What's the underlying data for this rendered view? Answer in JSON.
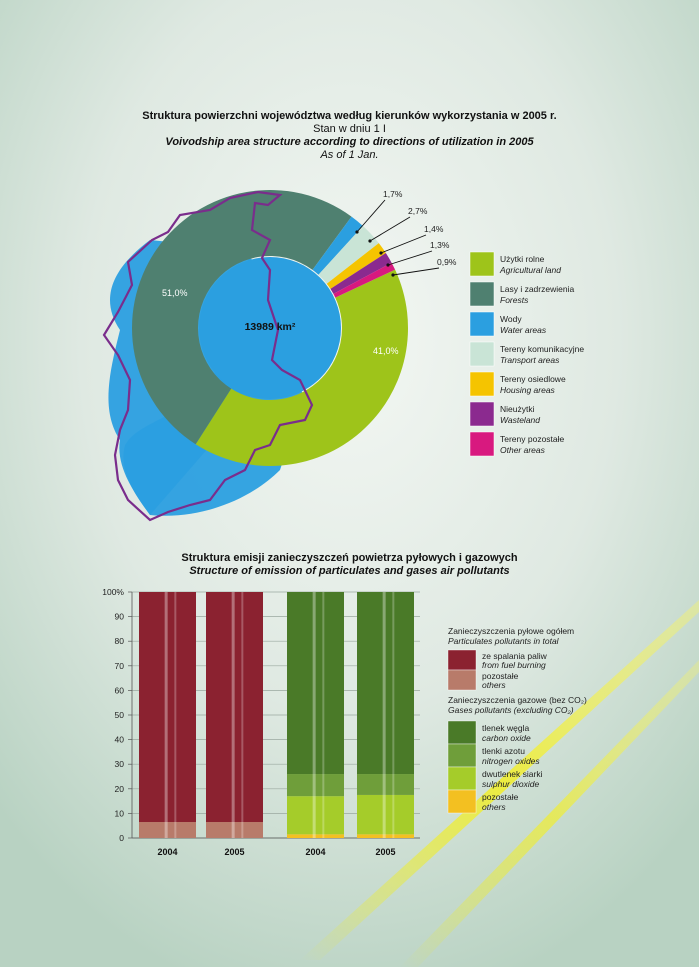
{
  "colors": {
    "agricultural": "#9ec41a",
    "forests": "#4f8070",
    "water": "#2b9fe0",
    "transport": "#c9e4d6",
    "housing": "#f5c400",
    "wasteland": "#8b2a8f",
    "other": "#d8197f",
    "border": "#7a2d8c",
    "fuel": "#8b2230",
    "dust_other": "#b87b6a",
    "co": "#4a7a28",
    "nox": "#6f9e3a",
    "so2": "#a5cc2a",
    "gas_other": "#f3c021"
  },
  "chart1": {
    "title_pl": "Struktura powierzchni województwa według kierunków wykorzystania w 2005 r.",
    "subtitle_pl": "Stan w dniu 1 I",
    "title_en": "Voivodship area structure according to directions of utilization in 2005",
    "subtitle_en": "As of 1 Jan.",
    "center_label": "13989 km²",
    "legend": [
      {
        "pl": "Użytki rolne",
        "en": "Agricultural land",
        "color_key": "agricultural",
        "icon": "legend-swatch"
      },
      {
        "pl": "Lasy i zadrzewienia",
        "en": "Forests",
        "color_key": "forests",
        "icon": "legend-swatch"
      },
      {
        "pl": "Wody",
        "en": "Water areas",
        "color_key": "water",
        "icon": "legend-swatch"
      },
      {
        "pl": "Tereny komunikacyjne",
        "en": "Transport areas",
        "color_key": "transport",
        "icon": "legend-swatch"
      },
      {
        "pl": "Tereny osiedlowe",
        "en": "Housing areas",
        "color_key": "housing",
        "icon": "legend-swatch"
      },
      {
        "pl": "Nieużytki",
        "en": "Wasteland",
        "color_key": "wasteland",
        "icon": "legend-swatch"
      },
      {
        "pl": "Tereny pozostałe",
        "en": "Other areas",
        "color_key": "other",
        "icon": "legend-swatch"
      }
    ]
  },
  "chart2": {
    "title_pl": "Struktura emisji zanieczyszczeń powietrza pyłowych i gazowych",
    "title_en": "Structure of emission of particulates and gases air pollutants",
    "legend_dust_pl": "Zanieczyszczenia pyłowe ogółem",
    "legend_dust_en": "Particulates pollutants in total",
    "legend_gas_pl": "Zanieczyszczenia gazowe (bez CO₂)",
    "legend_gas_en": "Gases pollutants (excluding CO₂)",
    "dust_items": [
      {
        "pl": "ze spalania paliw",
        "en": "from fuel burning",
        "color_key": "fuel"
      },
      {
        "pl": "pozostałe",
        "en": "others",
        "color_key": "dust_other"
      }
    ],
    "gas_items": [
      {
        "pl": "tlenek węgla",
        "en": "carbon oxide",
        "color_key": "co"
      },
      {
        "pl": "tlenki azotu",
        "en": "nitrogen oxides",
        "color_key": "nox"
      },
      {
        "pl": "dwutlenek siarki",
        "en": "sulphur dioxide",
        "color_key": "so2"
      },
      {
        "pl": "pozostałe",
        "en": "others",
        "color_key": "gas_other"
      }
    ]
  },
  "chart_data": [
    {
      "type": "pie",
      "labels": [
        "Użytki rolne",
        "Lasy i zadrzewienia",
        "Wody",
        "Tereny komunikacyjne",
        "Tereny osiedlowe",
        "Nieużytki",
        "Tereny pozostałe"
      ],
      "values": [
        41.0,
        51.0,
        1.7,
        2.7,
        1.4,
        1.3,
        0.9
      ],
      "value_labels": [
        "41,0%",
        "51,0%",
        "1,7%",
        "2,7%",
        "1,4%",
        "1,3%",
        "0,9%"
      ],
      "donut": true
    },
    {
      "type": "bar",
      "stacked": true,
      "ylim": [
        0,
        100
      ],
      "yticks": [
        "0",
        "10",
        "20",
        "30",
        "40",
        "50",
        "60",
        "70",
        "80",
        "90",
        "100%"
      ],
      "groups": [
        {
          "name": "dust",
          "categories": [
            "2004",
            "2005"
          ],
          "series": [
            {
              "name": "pozostałe",
              "color_key": "dust_other",
              "values": [
                6.5,
                6.5
              ]
            },
            {
              "name": "ze spalania paliw",
              "color_key": "fuel",
              "values": [
                93.5,
                93.5
              ]
            }
          ]
        },
        {
          "name": "gas",
          "categories": [
            "2004",
            "2005"
          ],
          "series": [
            {
              "name": "pozostałe",
              "color_key": "gas_other",
              "values": [
                1.5,
                1.5
              ]
            },
            {
              "name": "dwutlenek siarki",
              "color_key": "so2",
              "values": [
                15.5,
                16.0
              ]
            },
            {
              "name": "tlenki azotu",
              "color_key": "nox",
              "values": [
                9.0,
                8.5
              ]
            },
            {
              "name": "tlenek węgla",
              "color_key": "co",
              "values": [
                74.0,
                74.0
              ]
            }
          ]
        }
      ]
    }
  ]
}
